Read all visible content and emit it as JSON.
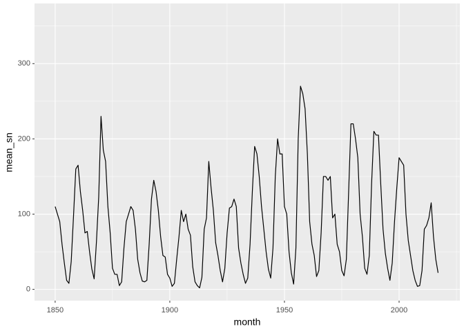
{
  "chart_data": {
    "type": "line",
    "x_label": "month",
    "y_label": "mean_sn",
    "xlim": [
      1841,
      2026.5
    ],
    "ylim": [
      -15,
      380
    ],
    "xticks": [
      1850,
      1900,
      1950,
      2000
    ],
    "yticks": [
      0,
      100,
      200,
      300
    ],
    "minor_xticks": [
      1875,
      1925,
      1975,
      2025
    ],
    "minor_yticks": [
      50,
      150,
      250,
      350
    ],
    "grid": true,
    "series": [
      {
        "color": "#000000",
        "x": [
          1850,
          1851,
          1852,
          1853,
          1854,
          1855,
          1856,
          1857,
          1858,
          1859,
          1860,
          1861,
          1862,
          1863,
          1864,
          1865,
          1866,
          1867,
          1868,
          1869,
          1870,
          1871,
          1872,
          1873,
          1874,
          1875,
          1876,
          1877,
          1878,
          1879,
          1880,
          1881,
          1882,
          1883,
          1884,
          1885,
          1886,
          1887,
          1888,
          1889,
          1890,
          1891,
          1892,
          1893,
          1894,
          1895,
          1896,
          1897,
          1898,
          1899,
          1900,
          1901,
          1902,
          1903,
          1904,
          1905,
          1906,
          1907,
          1908,
          1909,
          1910,
          1911,
          1912,
          1913,
          1914,
          1915,
          1916,
          1917,
          1918,
          1919,
          1920,
          1921,
          1922,
          1923,
          1924,
          1925,
          1926,
          1927,
          1928,
          1929,
          1930,
          1931,
          1932,
          1933,
          1934,
          1935,
          1936,
          1937,
          1938,
          1939,
          1940,
          1941,
          1942,
          1943,
          1944,
          1945,
          1946,
          1947,
          1948,
          1949,
          1950,
          1951,
          1952,
          1953,
          1954,
          1955,
          1956,
          1957,
          1958,
          1959,
          1960,
          1961,
          1962,
          1963,
          1964,
          1965,
          1966,
          1967,
          1968,
          1969,
          1970,
          1971,
          1972,
          1973,
          1974,
          1975,
          1976,
          1977,
          1978,
          1979,
          1980,
          1981,
          1982,
          1983,
          1984,
          1985,
          1986,
          1987,
          1988,
          1989,
          1990,
          1991,
          1992,
          1993,
          1994,
          1995,
          1996,
          1997,
          1998,
          1999,
          2000,
          2001,
          2002,
          2003,
          2004,
          2005,
          2006,
          2007,
          2008,
          2009,
          2010,
          2011,
          2012,
          2013,
          2014,
          2015,
          2016,
          2017
        ],
        "values": [
          110,
          100,
          90,
          60,
          35,
          12,
          8,
          37,
          97,
          160,
          165,
          130,
          105,
          75,
          77,
          50,
          27,
          14,
          63,
          123,
          230,
          185,
          170,
          110,
          75,
          28,
          20,
          20,
          5,
          10,
          55,
          90,
          100,
          110,
          105,
          80,
          40,
          22,
          11,
          10,
          12,
          60,
          120,
          145,
          130,
          105,
          70,
          45,
          43,
          20,
          15,
          4,
          8,
          40,
          70,
          105,
          90,
          100,
          80,
          72,
          30,
          10,
          5,
          2,
          16,
          80,
          95,
          170,
          135,
          105,
          62,
          45,
          25,
          10,
          28,
          75,
          108,
          110,
          120,
          110,
          55,
          35,
          20,
          8,
          15,
          60,
          130,
          190,
          180,
          150,
          110,
          80,
          50,
          27,
          15,
          55,
          150,
          200,
          180,
          180,
          110,
          100,
          50,
          22,
          7,
          55,
          200,
          270,
          260,
          240,
          180,
          90,
          60,
          45,
          17,
          25,
          75,
          150,
          150,
          145,
          150,
          95,
          100,
          60,
          50,
          25,
          18,
          40,
          130,
          220,
          220,
          200,
          175,
          100,
          70,
          28,
          20,
          45,
          140,
          210,
          205,
          205,
          140,
          80,
          48,
          28,
          12,
          35,
          90,
          135,
          175,
          170,
          165,
          100,
          65,
          45,
          25,
          12,
          4,
          5,
          25,
          80,
          85,
          95,
          115,
          70,
          40,
          22
        ]
      }
    ]
  }
}
